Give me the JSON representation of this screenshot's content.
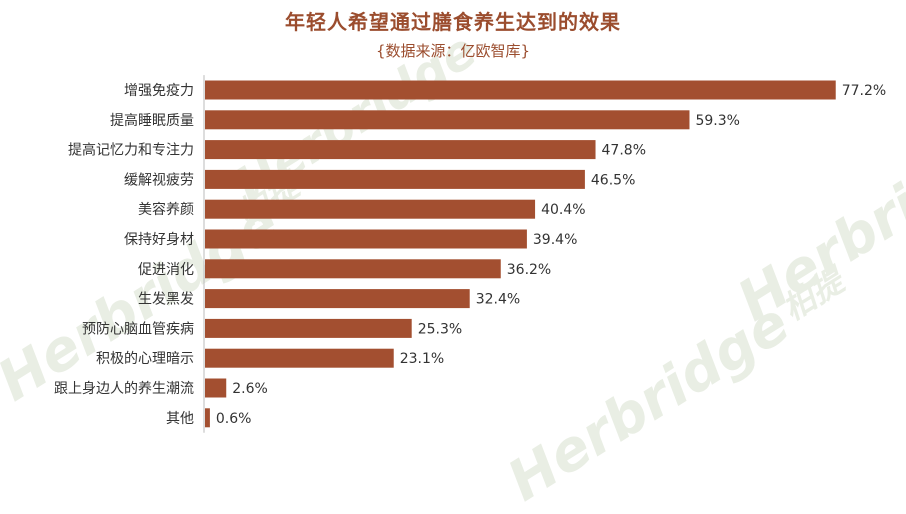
{
  "chart_data": {
    "type": "bar",
    "orientation": "horizontal",
    "title": "年轻人希望通过膳食养生达到的效果",
    "subtitle": "{数据来源：亿欧智库}",
    "categories": [
      "增强免疫力",
      "提高睡眠质量",
      "提高记忆力和专注力",
      "缓解视疲劳",
      "美容养颜",
      "保持好身材",
      "促进消化",
      "生发黑发",
      "预防心脑血管疾病",
      "积极的心理暗示",
      "跟上身边人的养生潮流",
      "其他"
    ],
    "values": [
      77.2,
      59.3,
      47.8,
      46.5,
      40.4,
      39.4,
      36.2,
      32.4,
      25.3,
      23.1,
      2.6,
      0.6
    ],
    "value_labels": [
      "77.2%",
      "59.3%",
      "47.8%",
      "46.5%",
      "40.4%",
      "39.4%",
      "36.2%",
      "32.4%",
      "25.3%",
      "23.1%",
      "2.6%",
      "0.6%"
    ],
    "xlim": [
      0,
      80
    ],
    "bar_color": "#a34f30",
    "grid": false,
    "legend": "none"
  },
  "watermark": {
    "brand": "Herbridge",
    "brand_cn": "柏提"
  }
}
